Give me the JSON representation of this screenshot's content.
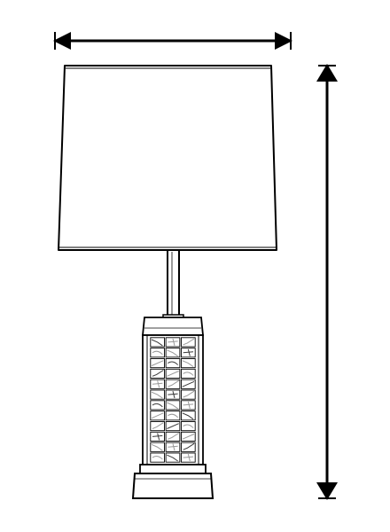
{
  "diagram": {
    "subject": "table-lamp",
    "style": "line-drawing",
    "colors": {
      "ink": "#000000",
      "paper": "#ffffff",
      "tile_mid": "#9a9a9a",
      "tile_dark": "#3a3a3a"
    },
    "dimension_arrows": [
      "width",
      "height"
    ],
    "base_mosaic": {
      "columns": 3,
      "rows": 12
    }
  }
}
